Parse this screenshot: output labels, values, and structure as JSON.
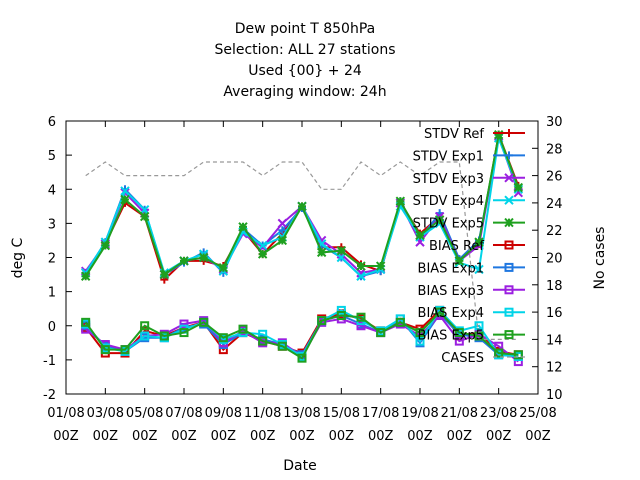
{
  "chart_data": {
    "type": "line",
    "title_lines": [
      "Dew point T 850hPa",
      "Selection: ALL      27 stations",
      "Used {00} + 24",
      "Averaging window: 24h"
    ],
    "xlabel": "Date",
    "ylabel": "deg C",
    "y2label": "No cases",
    "xlim": [
      0,
      24
    ],
    "ylim": [
      -2,
      6
    ],
    "y2lim": [
      10,
      30
    ],
    "yticks": [
      -2,
      -1,
      0,
      1,
      2,
      3,
      4,
      5,
      6
    ],
    "y2ticks": [
      10,
      12,
      14,
      16,
      18,
      20,
      22,
      24,
      26,
      28,
      30
    ],
    "xticks": [
      {
        "x": 0,
        "l1": "01/08",
        "l2": "00Z"
      },
      {
        "x": 2,
        "l1": "03/08",
        "l2": "00Z"
      },
      {
        "x": 4,
        "l1": "05/08",
        "l2": "00Z"
      },
      {
        "x": 6,
        "l1": "07/08",
        "l2": "00Z"
      },
      {
        "x": 8,
        "l1": "09/08",
        "l2": "00Z"
      },
      {
        "x": 10,
        "l1": "11/08",
        "l2": "00Z"
      },
      {
        "x": 12,
        "l1": "13/08",
        "l2": "00Z"
      },
      {
        "x": 14,
        "l1": "15/08",
        "l2": "00Z"
      },
      {
        "x": 16,
        "l1": "17/08",
        "l2": "00Z"
      },
      {
        "x": 18,
        "l1": "19/08",
        "l2": "00Z"
      },
      {
        "x": 20,
        "l1": "21/08",
        "l2": "00Z"
      },
      {
        "x": 22,
        "l1": "23/08",
        "l2": "00Z"
      },
      {
        "x": 24,
        "l1": "25/08",
        "l2": "00Z"
      }
    ],
    "x": [
      1,
      2,
      3,
      4,
      5,
      6,
      7,
      8,
      9,
      10,
      11,
      12,
      13,
      14,
      15,
      16,
      17,
      18,
      19,
      20,
      21,
      22,
      23
    ],
    "series": [
      {
        "name": "STDV Ref",
        "color": "#cc0000",
        "marker": "plus",
        "axis": "y",
        "values": [
          1.5,
          2.4,
          3.6,
          3.2,
          1.35,
          1.9,
          1.9,
          1.75,
          2.8,
          2.1,
          2.7,
          3.5,
          2.3,
          2.3,
          1.8,
          1.6,
          3.6,
          2.7,
          3.2,
          1.95,
          2.4,
          5.6,
          4.1
        ]
      },
      {
        "name": "STDV Exp1",
        "color": "#1f77e0",
        "marker": "plus",
        "axis": "y",
        "values": [
          1.55,
          2.45,
          4.0,
          3.4,
          1.5,
          1.85,
          2.15,
          1.55,
          2.85,
          2.35,
          2.8,
          3.45,
          2.35,
          2.0,
          1.45,
          1.6,
          3.65,
          2.55,
          3.3,
          1.95,
          2.5,
          5.5,
          4.0
        ]
      },
      {
        "name": "STDV Exp3",
        "color": "#9b1fe0",
        "marker": "x",
        "axis": "y",
        "values": [
          1.6,
          2.4,
          3.9,
          3.3,
          1.5,
          1.9,
          2.0,
          1.65,
          2.7,
          2.3,
          3.0,
          3.5,
          2.5,
          2.1,
          1.55,
          1.65,
          3.6,
          2.45,
          3.2,
          1.9,
          2.35,
          5.55,
          3.9
        ]
      },
      {
        "name": "STDV Exp4",
        "color": "#00d4e8",
        "marker": "x",
        "axis": "y",
        "values": [
          1.55,
          2.45,
          3.95,
          3.4,
          1.55,
          1.9,
          2.1,
          1.6,
          2.75,
          2.35,
          2.6,
          3.5,
          2.4,
          2.0,
          1.45,
          1.65,
          3.5,
          2.6,
          3.0,
          1.85,
          1.65,
          5.5,
          4.0
        ]
      },
      {
        "name": "STDV Exp5",
        "color": "#1fa01f",
        "marker": "star",
        "axis": "y",
        "values": [
          1.45,
          2.35,
          3.7,
          3.2,
          1.5,
          1.9,
          2.0,
          1.7,
          2.9,
          2.1,
          2.5,
          3.5,
          2.15,
          2.2,
          1.75,
          1.75,
          3.65,
          2.65,
          3.1,
          1.9,
          2.45,
          5.6,
          4.05
        ]
      },
      {
        "name": "BIAS Ref",
        "color": "#cc0000",
        "marker": "square",
        "axis": "y",
        "values": [
          -0.05,
          -0.8,
          -0.8,
          -0.15,
          -0.3,
          -0.05,
          0.1,
          -0.7,
          -0.2,
          -0.45,
          -0.6,
          -0.8,
          0.2,
          0.35,
          0.2,
          -0.15,
          0.1,
          -0.1,
          0.45,
          -0.3,
          -0.2,
          -0.75,
          -0.85
        ]
      },
      {
        "name": "BIAS Exp1",
        "color": "#1f77e0",
        "marker": "square",
        "axis": "y",
        "values": [
          0.0,
          -0.6,
          -0.75,
          -0.35,
          -0.35,
          -0.05,
          0.05,
          -0.55,
          -0.2,
          -0.4,
          -0.55,
          -0.85,
          0.15,
          0.3,
          0.05,
          -0.2,
          0.2,
          -0.5,
          0.35,
          -0.25,
          -0.35,
          -0.85,
          -0.9
        ]
      },
      {
        "name": "BIAS Exp3",
        "color": "#9b1fe0",
        "marker": "square",
        "axis": "y",
        "values": [
          -0.1,
          -0.55,
          -0.7,
          -0.3,
          -0.25,
          0.05,
          0.15,
          -0.5,
          -0.15,
          -0.5,
          -0.5,
          -0.9,
          0.1,
          0.2,
          0.0,
          -0.2,
          0.05,
          -0.3,
          0.3,
          -0.45,
          -0.25,
          -0.6,
          -1.05
        ]
      },
      {
        "name": "BIAS Exp4",
        "color": "#00d4e8",
        "marker": "square",
        "axis": "y",
        "values": [
          0.05,
          -0.65,
          -0.75,
          -0.3,
          -0.35,
          -0.1,
          0.1,
          -0.4,
          -0.2,
          -0.25,
          -0.55,
          -0.9,
          0.15,
          0.45,
          0.15,
          -0.15,
          0.2,
          -0.45,
          0.45,
          -0.15,
          -0.0,
          -0.85,
          -0.9
        ]
      },
      {
        "name": "BIAS Exp5",
        "color": "#1fa01f",
        "marker": "square",
        "axis": "y",
        "values": [
          0.1,
          -0.7,
          -0.7,
          0.0,
          -0.3,
          -0.2,
          0.1,
          -0.35,
          -0.1,
          -0.45,
          -0.6,
          -0.95,
          0.15,
          0.3,
          0.25,
          -0.2,
          0.1,
          -0.2,
          0.4,
          -0.2,
          -0.3,
          -0.8,
          -0.85
        ]
      },
      {
        "name": "CASES",
        "color": "#999999",
        "marker": "none",
        "dashed": true,
        "axis": "y2",
        "values": [
          26,
          27,
          26,
          26,
          26,
          26,
          27,
          27,
          27,
          26,
          27,
          27,
          25,
          25,
          27,
          26,
          27,
          26,
          27,
          27,
          14,
          14,
          14
        ]
      }
    ],
    "legend_position": "top-right",
    "grid": false
  }
}
